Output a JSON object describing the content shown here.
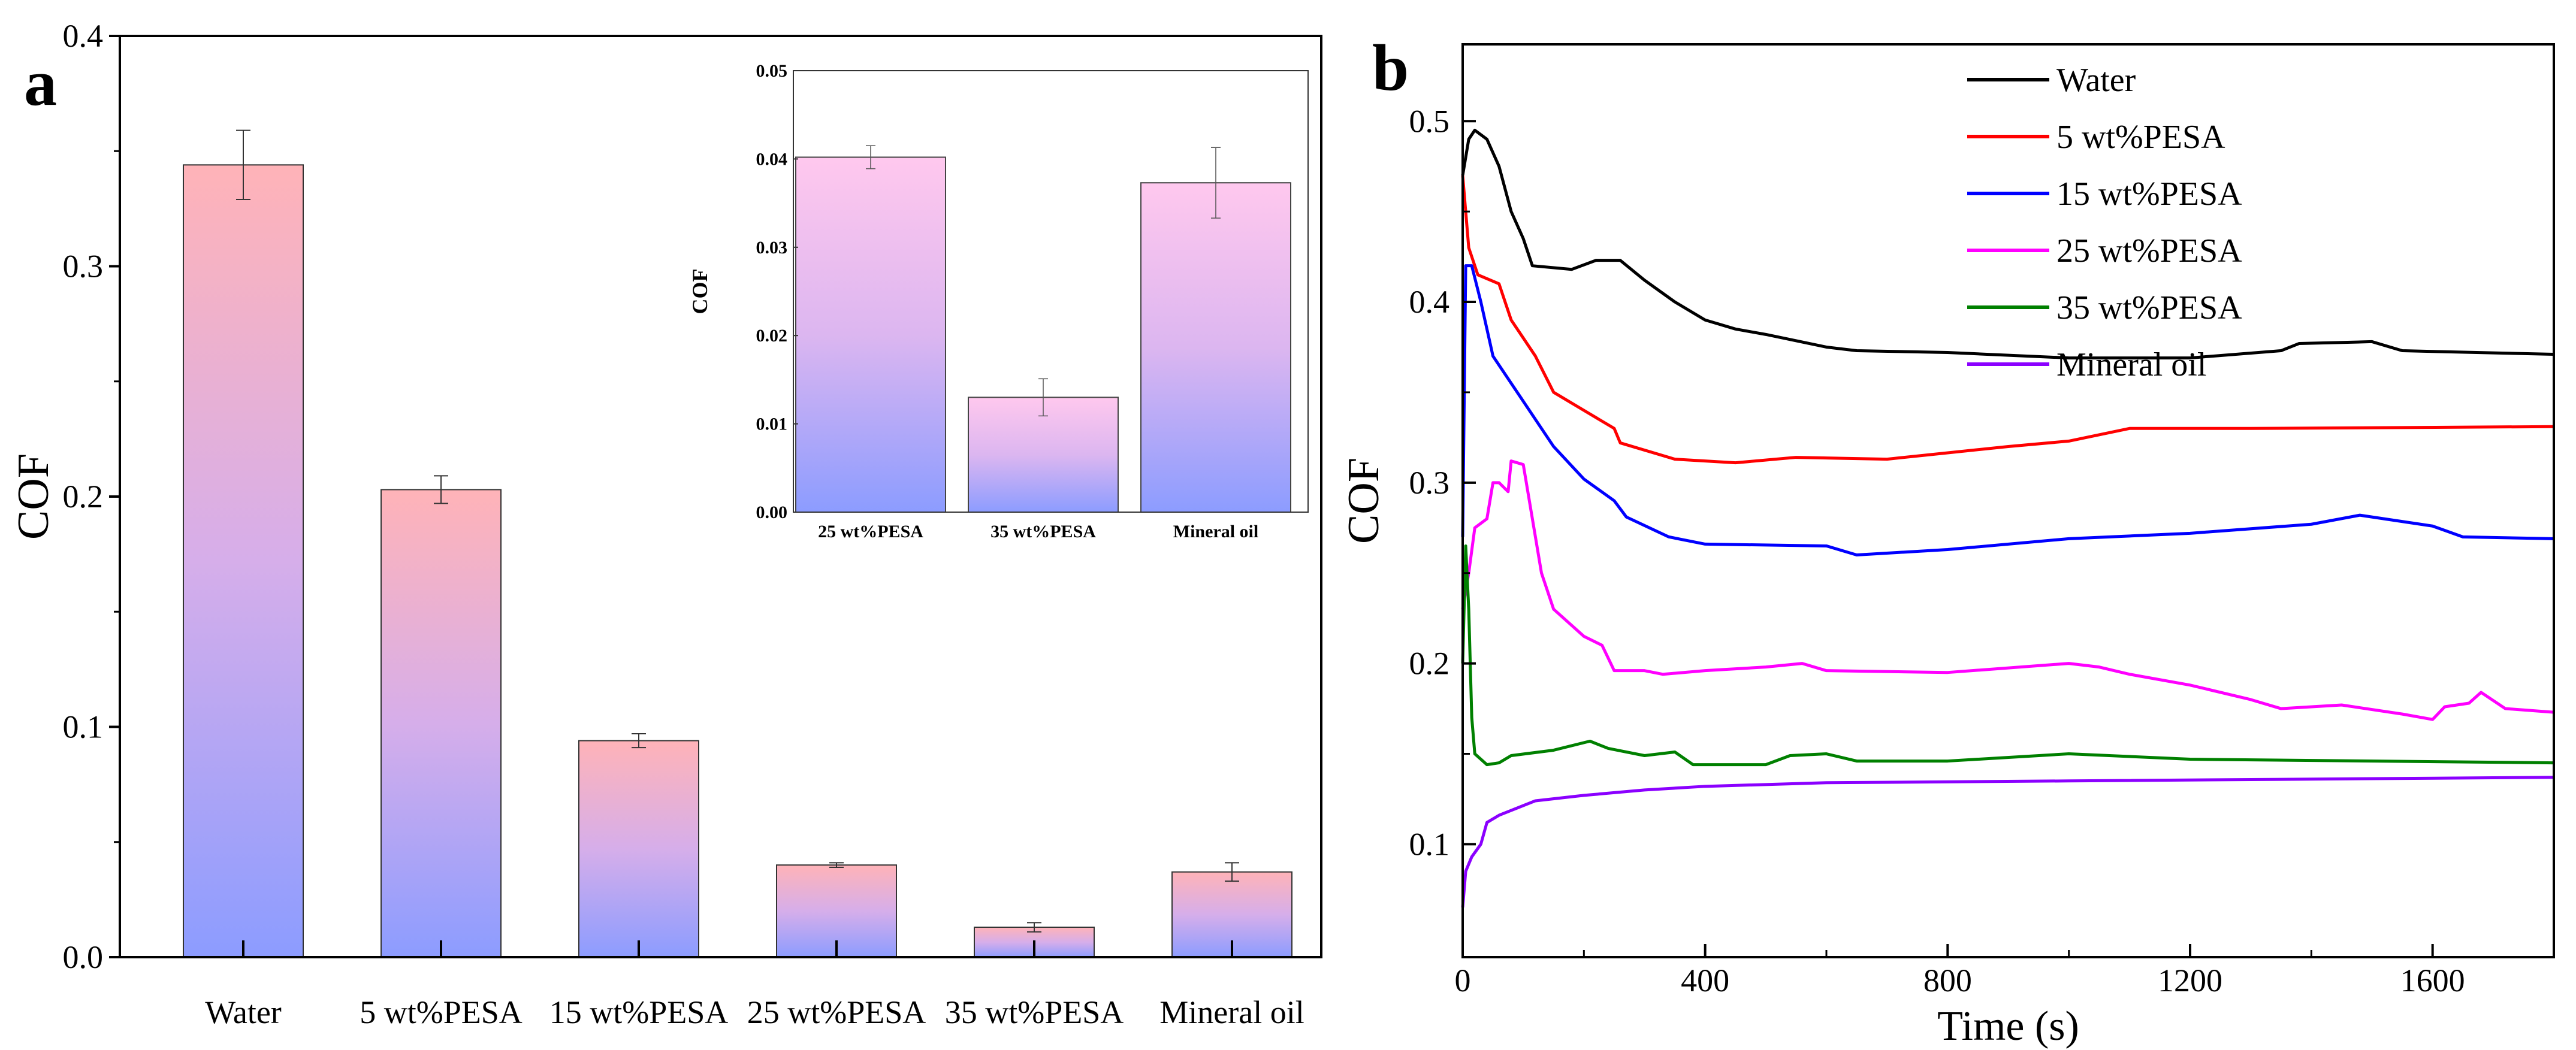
{
  "chart_data": [
    {
      "panel": "a",
      "type": "bar",
      "xlabel": "",
      "ylabel": "COF",
      "ylim": [
        0,
        0.4
      ],
      "yticks": [
        "0.0",
        "0.1",
        "0.2",
        "0.3",
        "0.4"
      ],
      "categories": [
        "Water",
        "5 wt%PESA",
        "15 wt%PESA",
        "25 wt%PESA",
        "35 wt%PESA",
        "Mineral oil"
      ],
      "values": [
        0.344,
        0.203,
        0.094,
        0.04,
        0.013,
        0.037
      ],
      "errors": [
        0.015,
        0.006,
        0.003,
        0.001,
        0.002,
        0.004
      ],
      "colors": {
        "top": "#ffb3b8",
        "mid": "#d6aeea",
        "bottom": "#8c9cff"
      },
      "inset": {
        "type": "bar",
        "ylabel": "COF",
        "ylim": [
          0,
          0.05
        ],
        "yticks": [
          "0.00",
          "0.01",
          "0.02",
          "0.03",
          "0.04",
          "0.05"
        ],
        "categories": [
          "25 wt%PESA",
          "35 wt%PESA",
          "Mineral oil"
        ],
        "values": [
          0.0402,
          0.013,
          0.0373
        ],
        "errors": [
          0.0013,
          0.0021,
          0.004
        ],
        "colors": {
          "top": "#ffc8ee",
          "mid": "#dcb6f0",
          "bottom": "#8c9cff"
        }
      }
    },
    {
      "panel": "b",
      "type": "line",
      "xlabel": "Time (s)",
      "ylabel": "COF",
      "xlim": [
        0,
        1800
      ],
      "ylim": [
        0.0375,
        0.5425
      ],
      "xticks": [
        "0",
        "400",
        "800",
        "1200",
        "1600"
      ],
      "yticks": [
        "0.1",
        "0.2",
        "0.3",
        "0.4",
        "0.5"
      ],
      "legend": "top-right",
      "series": [
        {
          "name": "Water",
          "color": "#000000",
          "points": [
            [
              0,
              0.47
            ],
            [
              10,
              0.49
            ],
            [
              20,
              0.495
            ],
            [
              40,
              0.49
            ],
            [
              60,
              0.475
            ],
            [
              80,
              0.45
            ],
            [
              100,
              0.435
            ],
            [
              115,
              0.42
            ],
            [
              180,
              0.418
            ],
            [
              220,
              0.423
            ],
            [
              260,
              0.423
            ],
            [
              300,
              0.412
            ],
            [
              350,
              0.4
            ],
            [
              400,
              0.39
            ],
            [
              450,
              0.385
            ],
            [
              500,
              0.382
            ],
            [
              600,
              0.375
            ],
            [
              650,
              0.373
            ],
            [
              800,
              0.372
            ],
            [
              1000,
              0.369
            ],
            [
              1200,
              0.369
            ],
            [
              1350,
              0.373
            ],
            [
              1380,
              0.377
            ],
            [
              1500,
              0.378
            ],
            [
              1550,
              0.373
            ],
            [
              1800,
              0.371
            ]
          ]
        },
        {
          "name": "5 wt%PESA",
          "color": "#ff0000",
          "points": [
            [
              0,
              0.47
            ],
            [
              10,
              0.43
            ],
            [
              25,
              0.415
            ],
            [
              60,
              0.41
            ],
            [
              80,
              0.39
            ],
            [
              120,
              0.37
            ],
            [
              150,
              0.35
            ],
            [
              200,
              0.34
            ],
            [
              250,
              0.33
            ],
            [
              260,
              0.322
            ],
            [
              350,
              0.313
            ],
            [
              450,
              0.311
            ],
            [
              550,
              0.314
            ],
            [
              700,
              0.313
            ],
            [
              900,
              0.32
            ],
            [
              1000,
              0.323
            ],
            [
              1100,
              0.33
            ],
            [
              1300,
              0.33
            ],
            [
              1800,
              0.331
            ]
          ]
        },
        {
          "name": "15 wt%PESA",
          "color": "#0000ff",
          "points": [
            [
              0,
              0.27
            ],
            [
              5,
              0.42
            ],
            [
              15,
              0.42
            ],
            [
              30,
              0.4
            ],
            [
              50,
              0.37
            ],
            [
              100,
              0.345
            ],
            [
              150,
              0.32
            ],
            [
              200,
              0.302
            ],
            [
              250,
              0.29
            ],
            [
              270,
              0.281
            ],
            [
              340,
              0.27
            ],
            [
              400,
              0.266
            ],
            [
              600,
              0.265
            ],
            [
              650,
              0.26
            ],
            [
              800,
              0.263
            ],
            [
              1000,
              0.269
            ],
            [
              1200,
              0.272
            ],
            [
              1400,
              0.277
            ],
            [
              1480,
              0.282
            ],
            [
              1600,
              0.276
            ],
            [
              1650,
              0.27
            ],
            [
              1800,
              0.269
            ]
          ]
        },
        {
          "name": "25 wt%PESA",
          "color": "#ff00ff",
          "points": [
            [
              0,
              0.23
            ],
            [
              10,
              0.25
            ],
            [
              20,
              0.275
            ],
            [
              40,
              0.28
            ],
            [
              50,
              0.3
            ],
            [
              60,
              0.3
            ],
            [
              75,
              0.295
            ],
            [
              80,
              0.312
            ],
            [
              100,
              0.31
            ],
            [
              110,
              0.29
            ],
            [
              130,
              0.25
            ],
            [
              150,
              0.23
            ],
            [
              200,
              0.215
            ],
            [
              230,
              0.21
            ],
            [
              250,
              0.196
            ],
            [
              300,
              0.196
            ],
            [
              330,
              0.194
            ],
            [
              400,
              0.196
            ],
            [
              500,
              0.198
            ],
            [
              560,
              0.2
            ],
            [
              600,
              0.196
            ],
            [
              800,
              0.195
            ],
            [
              1000,
              0.2
            ],
            [
              1050,
              0.198
            ],
            [
              1100,
              0.194
            ],
            [
              1200,
              0.188
            ],
            [
              1300,
              0.18
            ],
            [
              1350,
              0.175
            ],
            [
              1450,
              0.177
            ],
            [
              1550,
              0.172
            ],
            [
              1600,
              0.169
            ],
            [
              1620,
              0.176
            ],
            [
              1660,
              0.178
            ],
            [
              1680,
              0.184
            ],
            [
              1720,
              0.175
            ],
            [
              1800,
              0.173
            ]
          ]
        },
        {
          "name": "35 wt%PESA",
          "color": "#008000",
          "points": [
            [
              0,
              0.2
            ],
            [
              5,
              0.265
            ],
            [
              10,
              0.23
            ],
            [
              15,
              0.17
            ],
            [
              20,
              0.15
            ],
            [
              40,
              0.144
            ],
            [
              60,
              0.145
            ],
            [
              80,
              0.149
            ],
            [
              150,
              0.152
            ],
            [
              210,
              0.157
            ],
            [
              240,
              0.153
            ],
            [
              300,
              0.149
            ],
            [
              350,
              0.151
            ],
            [
              380,
              0.144
            ],
            [
              500,
              0.144
            ],
            [
              540,
              0.149
            ],
            [
              600,
              0.15
            ],
            [
              650,
              0.146
            ],
            [
              800,
              0.146
            ],
            [
              1000,
              0.15
            ],
            [
              1200,
              0.147
            ],
            [
              1800,
              0.145
            ]
          ]
        },
        {
          "name": "Mineral oil",
          "color": "#8b00ff",
          "points": [
            [
              0,
              0.065
            ],
            [
              5,
              0.085
            ],
            [
              15,
              0.093
            ],
            [
              30,
              0.1
            ],
            [
              40,
              0.112
            ],
            [
              60,
              0.116
            ],
            [
              120,
              0.124
            ],
            [
              200,
              0.127
            ],
            [
              300,
              0.13
            ],
            [
              400,
              0.132
            ],
            [
              600,
              0.134
            ],
            [
              1000,
              0.135
            ],
            [
              1800,
              0.137
            ]
          ]
        }
      ]
    }
  ]
}
